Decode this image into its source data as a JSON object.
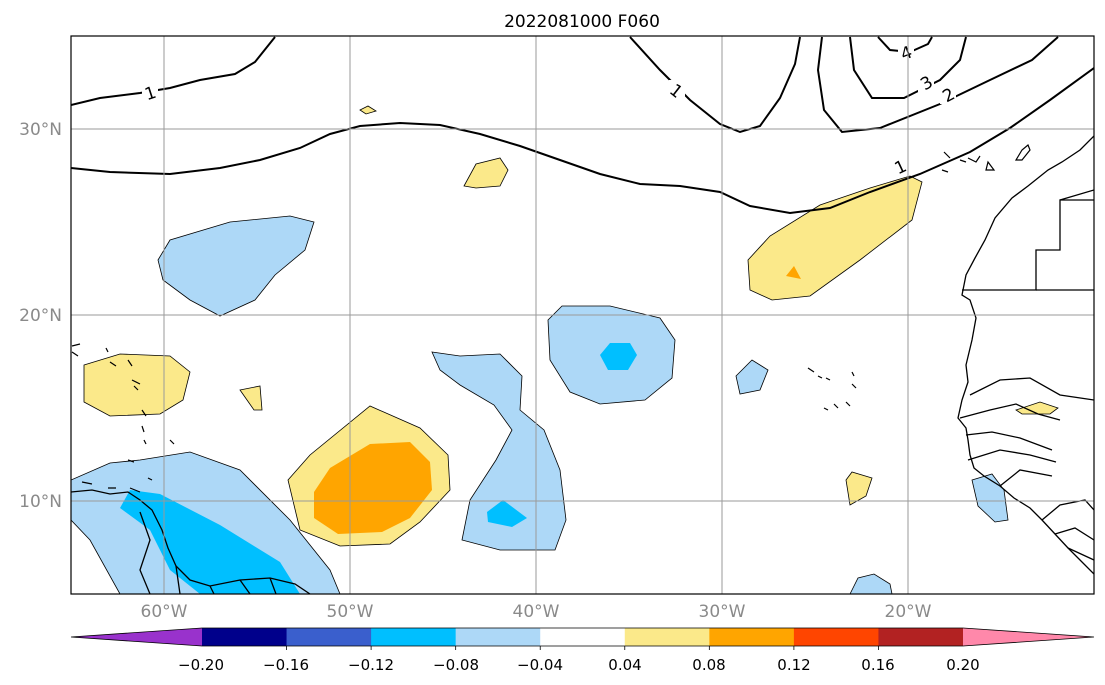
{
  "title": "2022081000 F060",
  "map": {
    "region": "Tropical North Atlantic",
    "projection": "PlateCarree",
    "lon_range": [
      "65°W",
      "10°W"
    ],
    "lat_range": [
      "5°N",
      "35°N"
    ],
    "gridlines": true,
    "lat_labels": [
      "30°N",
      "20°N",
      "10°N"
    ],
    "lon_labels": [
      "60°W",
      "50°W",
      "40°W",
      "30°W",
      "20°W"
    ]
  },
  "contours": {
    "labels": [
      "1",
      "1",
      "1",
      "2",
      "3",
      "4"
    ],
    "color": "#000000"
  },
  "colorbar": {
    "ticks": [
      "−0.20",
      "−0.16",
      "−0.12",
      "−0.08",
      "−0.04",
      "0.04",
      "0.08",
      "0.12",
      "0.16",
      "0.20"
    ],
    "bin_colors": [
      "#9932cc",
      "#00008b",
      "#3a5fcd",
      "#00bfff",
      "#add8f7",
      "#ffffff",
      "#fbe98a",
      "#ffa500",
      "#ff4500",
      "#b22222",
      "#ff88aa"
    ],
    "extend": "both"
  }
}
